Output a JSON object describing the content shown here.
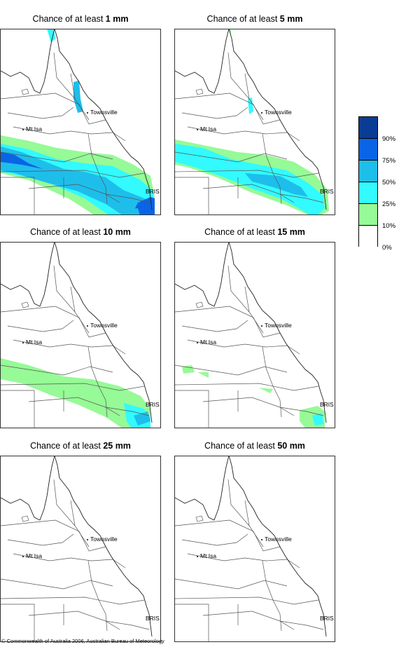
{
  "panels": [
    {
      "title_prefix": "Chance of at least ",
      "threshold": "1 mm"
    },
    {
      "title_prefix": "Chance of at least ",
      "threshold": "5 mm"
    },
    {
      "title_prefix": "Chance of at least ",
      "threshold": "10 mm"
    },
    {
      "title_prefix": "Chance of at least ",
      "threshold": "15 mm"
    },
    {
      "title_prefix": "Chance of at least ",
      "threshold": "25 mm"
    },
    {
      "title_prefix": "Chance of at least ",
      "threshold": "50 mm"
    }
  ],
  "places": {
    "townsville": "Townsville",
    "mt_isa": "Mt Isa",
    "brisbane": "BRIS"
  },
  "legend": {
    "labels": [
      "90%",
      "75%",
      "50%",
      "25%",
      "10%",
      "0%"
    ],
    "colors": [
      "#0a3c96",
      "#0a64e6",
      "#1ebeeb",
      "#32faff",
      "#96fa96",
      "#ffffff"
    ]
  },
  "copyright": "© Commonwealth of Australia 2006, Australian Bureau of Meteorology"
}
